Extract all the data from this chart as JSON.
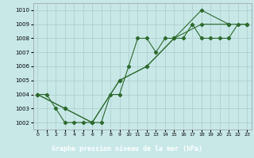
{
  "title": "Graphe pression niveau de la mer (hPa)",
  "bg_color": "#c8e8e8",
  "grid_color": "#b0d0d0",
  "line_color": "#2d6a2d",
  "title_bg": "#2d6a2d",
  "title_fg": "#ffffff",
  "ylim": [
    1001.5,
    1010.5
  ],
  "xlim": [
    -0.5,
    23.5
  ],
  "yticks": [
    1002,
    1003,
    1004,
    1005,
    1006,
    1007,
    1008,
    1009,
    1010
  ],
  "xticks": [
    0,
    1,
    2,
    3,
    4,
    5,
    6,
    7,
    8,
    9,
    10,
    11,
    12,
    13,
    14,
    15,
    16,
    17,
    18,
    19,
    20,
    21,
    22,
    23
  ],
  "series": [
    {
      "x": [
        0,
        1,
        2,
        3,
        4,
        5,
        6,
        7,
        8,
        9,
        10,
        11,
        12,
        13,
        14,
        15,
        16,
        17,
        18,
        19,
        20,
        21,
        22,
        23
      ],
      "y": [
        1004,
        1004,
        1003,
        1002,
        1002,
        1002,
        1002,
        1002,
        1004,
        1004,
        1006,
        1008,
        1008,
        1007,
        1008,
        1008,
        1008,
        1009,
        1008,
        1008,
        1008,
        1008,
        1009,
        1009
      ]
    },
    {
      "x": [
        0,
        3,
        6,
        9,
        12,
        15,
        18,
        21
      ],
      "y": [
        1004,
        1003,
        1002,
        1005,
        1006,
        1008,
        1010,
        1009
      ]
    },
    {
      "x": [
        0,
        3,
        6,
        9,
        12,
        15,
        18,
        21,
        23
      ],
      "y": [
        1004,
        1003,
        1002,
        1005,
        1006,
        1008,
        1009,
        1009,
        1009
      ]
    }
  ]
}
